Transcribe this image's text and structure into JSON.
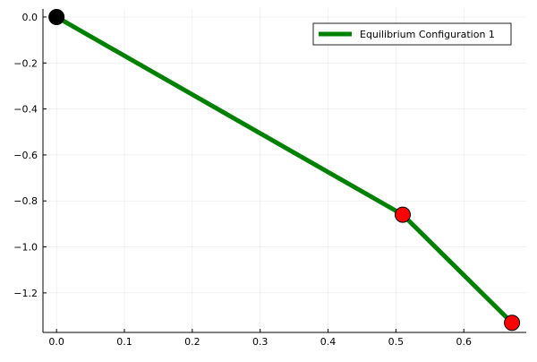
{
  "chart_data": {
    "type": "line",
    "title": "",
    "xlabel": "",
    "ylabel": "",
    "xlim": [
      -0.02,
      0.692
    ],
    "ylim": [
      -1.372,
      0.035
    ],
    "x_ticks": [
      0.0,
      0.1,
      0.2,
      0.3,
      0.4,
      0.5,
      0.6
    ],
    "x_tick_labels": [
      "0.0",
      "0.1",
      "0.2",
      "0.3",
      "0.4",
      "0.5",
      "0.6"
    ],
    "y_ticks": [
      0.0,
      -0.2,
      -0.4,
      -0.6,
      -0.8,
      -1.0,
      -1.2
    ],
    "y_tick_labels": [
      "0.0",
      "−0.2",
      "−0.4",
      "−0.6",
      "−0.8",
      "−1.0",
      "−1.2"
    ],
    "grid": true,
    "legend_position": "top-right",
    "series": [
      {
        "name": "Equilibrium Configuration 1",
        "color": "#008000",
        "x": [
          0.0,
          0.51,
          0.671
        ],
        "y": [
          0.0,
          -0.86,
          -1.33
        ]
      }
    ],
    "markers": [
      {
        "x": 0.0,
        "y": 0.0,
        "color": "#000000"
      },
      {
        "x": 0.51,
        "y": -0.86,
        "color": "#ff0000"
      },
      {
        "x": 0.671,
        "y": -1.33,
        "color": "#ff0000"
      }
    ]
  }
}
